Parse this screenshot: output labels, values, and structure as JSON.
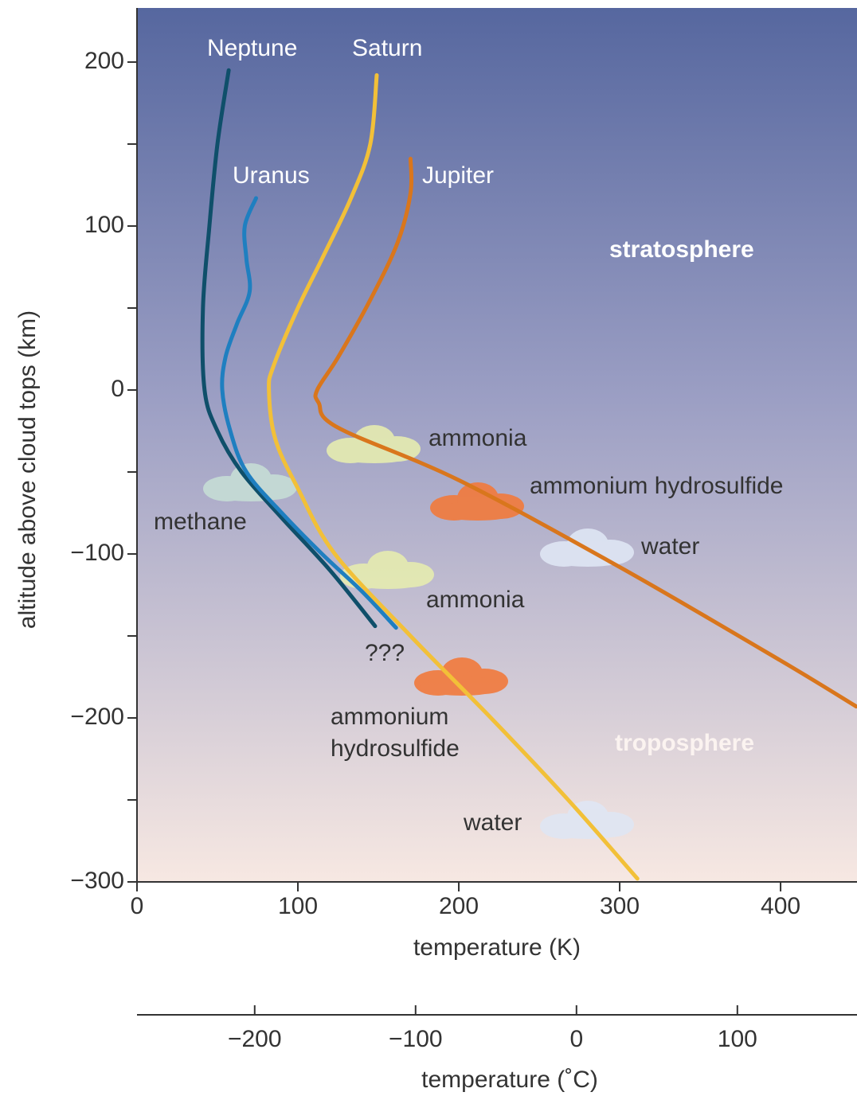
{
  "chart_data": {
    "type": "line",
    "y_label": "altitude above cloud tops (km)",
    "x_label": "temperature (K)",
    "x2_label": "temperature (˚C)",
    "xlim": [
      0,
      447
    ],
    "xticks": [
      0,
      100,
      200,
      300,
      400
    ],
    "ylim": [
      -300,
      233
    ],
    "yticks": [
      {
        "value": -300,
        "label": "−300"
      },
      {
        "value": -200,
        "label": "−200"
      },
      {
        "value": -100,
        "label": "−100"
      },
      0,
      100,
      200
    ],
    "y_minor_ticks": [
      -250,
      -150,
      -50,
      50,
      150
    ],
    "x2lim": [
      -273.15,
      173.85
    ],
    "x2ticks": [
      {
        "value": -200,
        "label": "−200"
      },
      {
        "value": -100,
        "label": "−100"
      },
      0,
      100
    ],
    "series": [
      {
        "name": "Neptune",
        "color": "#0f4f6a",
        "x": [
          57,
          50,
          45,
          41,
          42,
          50,
          65,
          90,
          120,
          148
        ],
        "values": [
          195,
          150,
          100,
          50,
          0,
          -25,
          -50,
          -78,
          -110,
          -144
        ]
      },
      {
        "name": "Uranus",
        "color": "#1f7fc0",
        "x": [
          74,
          67,
          68,
          70,
          62,
          55,
          53,
          58,
          68,
          90,
          115,
          140,
          161
        ],
        "values": [
          117,
          100,
          80,
          60,
          40,
          20,
          0,
          -25,
          -50,
          -75,
          -100,
          -123,
          -145
        ]
      },
      {
        "name": "Saturn",
        "color": "#f2c038",
        "x": [
          149,
          145,
          133,
          115,
          100,
          85,
          82,
          86,
          100,
          123,
          170,
          220,
          268,
          311
        ],
        "values": [
          192,
          150,
          117,
          80,
          50,
          15,
          0,
          -30,
          -60,
          -100,
          -150,
          -200,
          -250,
          -298
        ]
      },
      {
        "name": "Jupiter",
        "color": "#d9761c",
        "x": [
          170,
          170,
          162,
          145,
          125,
          112,
          113,
          125,
          200,
          300,
          400,
          447
        ],
        "values": [
          141,
          120,
          90,
          55,
          20,
          0,
          -8,
          -23,
          -55,
          -108,
          -165,
          -193
        ]
      }
    ],
    "annotations": [
      "ammonia",
      "ammonium hydrosulfide",
      "water",
      "methane",
      "ammonia",
      "???",
      "ammonium",
      "hydrosulfide",
      "water",
      "stratosphere",
      "troposphere"
    ]
  }
}
